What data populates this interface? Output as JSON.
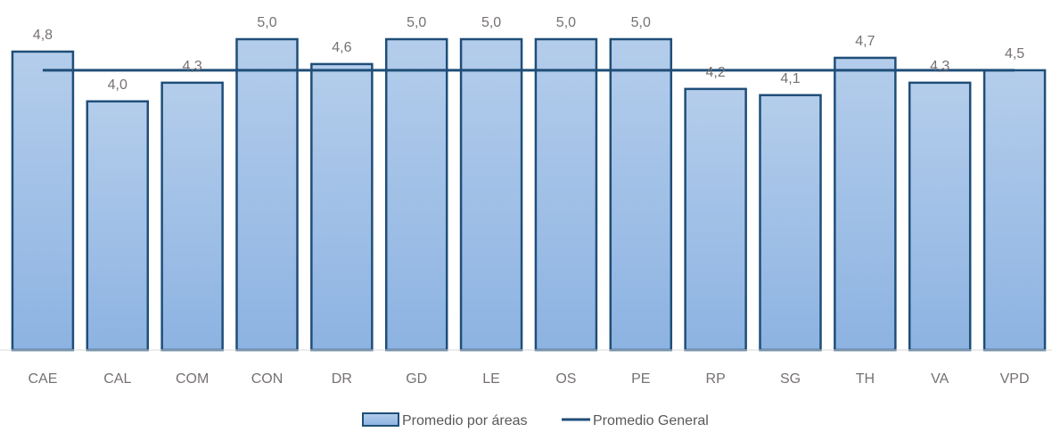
{
  "chart_data": {
    "type": "bar",
    "categories": [
      "CAE",
      "CAL",
      "COM",
      "CON",
      "DR",
      "GD",
      "LE",
      "OS",
      "PE",
      "RP",
      "SG",
      "TH",
      "VA",
      "VPD"
    ],
    "series": [
      {
        "name": "Promedio por áreas",
        "type": "bar",
        "values": [
          4.8,
          4.0,
          4.3,
          5.0,
          4.6,
          5.0,
          5.0,
          5.0,
          5.0,
          4.2,
          4.1,
          4.7,
          4.3,
          4.5
        ],
        "value_labels": [
          "4,8",
          "4,0",
          "4,3",
          "5,0",
          "4,6",
          "5,0",
          "5,0",
          "5,0",
          "5,0",
          "4,2",
          "4,1",
          "4,7",
          "4,3",
          "4,5"
        ],
        "color": "#9DC3E6",
        "border_color": "#1F4E79"
      },
      {
        "name": "Promedio General",
        "type": "line",
        "value": 4.5,
        "color": "#1F4E79"
      }
    ],
    "ylim": [
      0,
      5.2
    ],
    "grid": false,
    "legend_position": "bottom-center",
    "title": "",
    "xlabel": "",
    "ylabel": ""
  }
}
